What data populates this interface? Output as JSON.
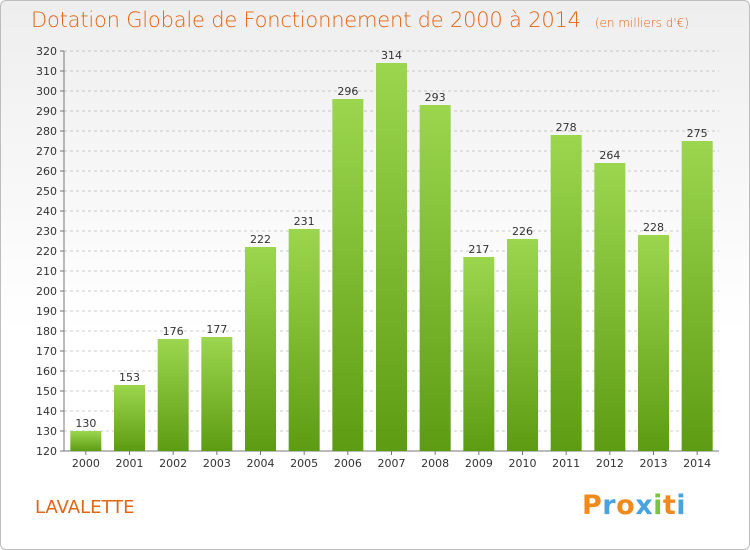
{
  "title": "Dotation Globale de Fonctionnement de 2000 à 2014",
  "subtitle": "(en milliers d'€)",
  "commune": "LAVALETTE",
  "logo": {
    "text": "Proxiti",
    "letters": [
      "P",
      "r",
      "o",
      "x",
      "i",
      "t",
      "i"
    ],
    "colors": [
      "#f08a1c",
      "#4aa3df",
      "#f08a1c",
      "#4aa3df",
      "#7cc242",
      "#f08a1c",
      "#4aa3df"
    ]
  },
  "colors": {
    "title": "#e26512",
    "bar_top": "#9cd64f",
    "bar_bottom": "#5d9c12",
    "grid": "#9a9a9a",
    "axis": "#777777",
    "text": "#333333"
  },
  "chart_data": {
    "type": "bar",
    "title": "Dotation Globale de Fonctionnement de 2000 à 2014",
    "subtitle": "(en milliers d'€)",
    "categories": [
      "2000",
      "2001",
      "2002",
      "2003",
      "2004",
      "2005",
      "2006",
      "2007",
      "2008",
      "2009",
      "2010",
      "2011",
      "2012",
      "2013",
      "2014"
    ],
    "values": [
      130,
      153,
      176,
      177,
      222,
      231,
      296,
      314,
      293,
      217,
      226,
      278,
      264,
      228,
      275
    ],
    "ylim": [
      120,
      320
    ],
    "yticks": [
      120,
      130,
      140,
      150,
      160,
      170,
      180,
      190,
      200,
      210,
      220,
      230,
      240,
      250,
      260,
      270,
      280,
      290,
      300,
      310,
      320
    ],
    "grid": true,
    "grid_style": "dashed horizontal",
    "legend": "none"
  }
}
